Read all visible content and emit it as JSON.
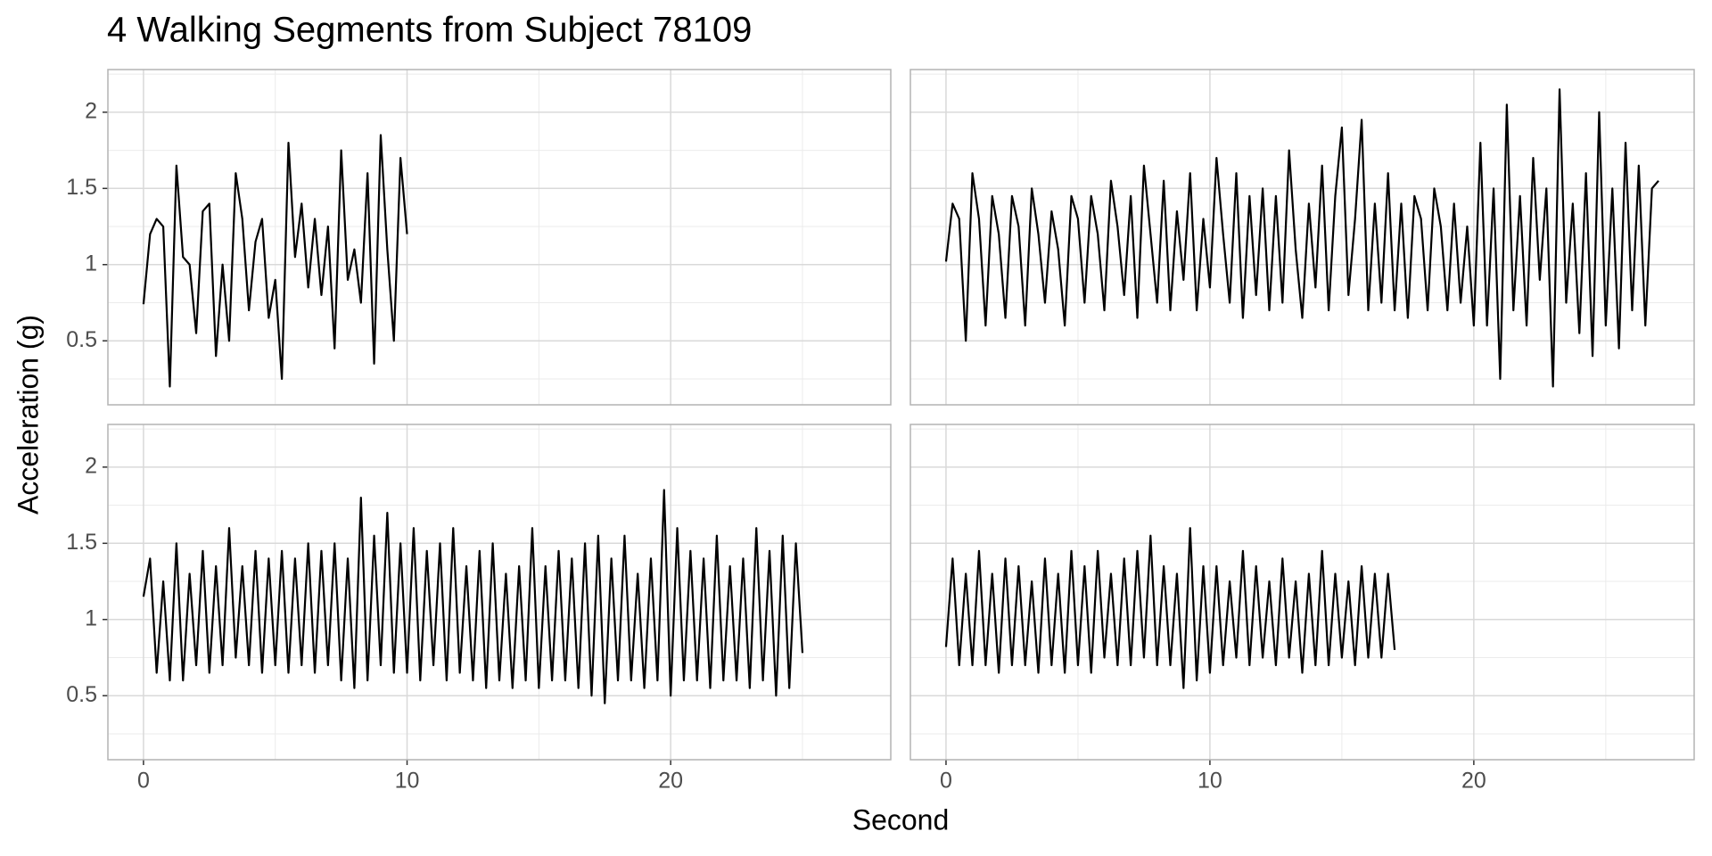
{
  "chart_data": {
    "type": "line",
    "title": "4 Walking Segments from Subject 78109",
    "x_label": "Second",
    "y_label": "Acceleration (g)",
    "xlim": [
      -1.35,
      28.35
    ],
    "ylim": [
      0.08,
      2.28
    ],
    "xticks": [
      0,
      10,
      20
    ],
    "yticks": [
      0.5,
      1.0,
      1.5,
      2.0
    ],
    "x_minor_grid": [
      5,
      15,
      25
    ],
    "y_minor_grid": [
      0.25,
      0.75,
      1.25,
      1.75,
      2.25
    ],
    "grid": true,
    "color": "#000000",
    "panels": [
      {
        "x": [
          0,
          0.25,
          0.5,
          0.75,
          1,
          1.25,
          1.5,
          1.75,
          2,
          2.25,
          2.5,
          2.75,
          3,
          3.25,
          3.5,
          3.75,
          4,
          4.25,
          4.5,
          4.75,
          5,
          5.25,
          5.5,
          5.75,
          6,
          6.25,
          6.5,
          6.75,
          7,
          7.25,
          7.5,
          7.75,
          8,
          8.25,
          8.5,
          8.75,
          9,
          9.25,
          9.5,
          9.75,
          10
        ],
        "values": [
          0.74,
          1.2,
          1.3,
          1.25,
          0.2,
          1.65,
          1.05,
          1.0,
          0.55,
          1.35,
          1.4,
          0.4,
          1.0,
          0.5,
          1.6,
          1.3,
          0.7,
          1.15,
          1.3,
          0.65,
          0.9,
          0.25,
          1.8,
          1.05,
          1.4,
          0.85,
          1.3,
          0.8,
          1.25,
          0.45,
          1.75,
          0.9,
          1.1,
          0.75,
          1.6,
          0.35,
          1.85,
          1.1,
          0.5,
          1.7,
          1.2
        ]
      },
      {
        "x": [
          0,
          0.25,
          0.5,
          0.75,
          1,
          1.25,
          1.5,
          1.75,
          2,
          2.25,
          2.5,
          2.75,
          3,
          3.25,
          3.5,
          3.75,
          4,
          4.25,
          4.5,
          4.75,
          5,
          5.25,
          5.5,
          5.75,
          6,
          6.25,
          6.5,
          6.75,
          7,
          7.25,
          7.5,
          7.75,
          8,
          8.25,
          8.5,
          8.75,
          9,
          9.25,
          9.5,
          9.75,
          10,
          10.25,
          10.5,
          10.75,
          11,
          11.25,
          11.5,
          11.75,
          12,
          12.25,
          12.5,
          12.75,
          13,
          13.25,
          13.5,
          13.75,
          14,
          14.25,
          14.5,
          14.75,
          15,
          15.25,
          15.5,
          15.75,
          16,
          16.25,
          16.5,
          16.75,
          17,
          17.25,
          17.5,
          17.75,
          18,
          18.25,
          18.5,
          18.75,
          19,
          19.25,
          19.5,
          19.75,
          20,
          20.25,
          20.5,
          20.75,
          21,
          21.25,
          21.5,
          21.75,
          22,
          22.25,
          22.5,
          22.75,
          23,
          23.25,
          23.5,
          23.75,
          24,
          24.25,
          24.5,
          24.75,
          25,
          25.25,
          25.5,
          25.75,
          26,
          26.25,
          26.5,
          26.75,
          27
        ],
        "values": [
          1.02,
          1.4,
          1.3,
          0.5,
          1.6,
          1.3,
          0.6,
          1.45,
          1.2,
          0.65,
          1.45,
          1.25,
          0.6,
          1.5,
          1.2,
          0.75,
          1.35,
          1.1,
          0.6,
          1.45,
          1.3,
          0.75,
          1.45,
          1.2,
          0.7,
          1.55,
          1.25,
          0.8,
          1.45,
          0.65,
          1.65,
          1.2,
          0.75,
          1.55,
          0.7,
          1.35,
          0.9,
          1.6,
          0.7,
          1.3,
          0.85,
          1.7,
          1.2,
          0.75,
          1.6,
          0.65,
          1.45,
          0.8,
          1.5,
          0.7,
          1.45,
          0.75,
          1.75,
          1.1,
          0.65,
          1.4,
          0.85,
          1.65,
          0.7,
          1.45,
          1.9,
          0.8,
          1.3,
          1.95,
          0.7,
          1.4,
          0.75,
          1.6,
          0.7,
          1.4,
          0.65,
          1.45,
          1.3,
          0.7,
          1.5,
          1.25,
          0.7,
          1.4,
          0.75,
          1.25,
          0.6,
          1.8,
          0.6,
          1.5,
          0.25,
          2.05,
          0.7,
          1.45,
          0.6,
          1.7,
          0.9,
          1.5,
          0.2,
          2.15,
          0.75,
          1.4,
          0.55,
          1.6,
          0.4,
          2.0,
          0.6,
          1.5,
          0.45,
          1.8,
          0.7,
          1.65,
          0.6,
          1.5,
          1.55
        ]
      },
      {
        "x": [
          0,
          0.25,
          0.5,
          0.75,
          1,
          1.25,
          1.5,
          1.75,
          2,
          2.25,
          2.5,
          2.75,
          3,
          3.25,
          3.5,
          3.75,
          4,
          4.25,
          4.5,
          4.75,
          5,
          5.25,
          5.5,
          5.75,
          6,
          6.25,
          6.5,
          6.75,
          7,
          7.25,
          7.5,
          7.75,
          8,
          8.25,
          8.5,
          8.75,
          9,
          9.25,
          9.5,
          9.75,
          10,
          10.25,
          10.5,
          10.75,
          11,
          11.25,
          11.5,
          11.75,
          12,
          12.25,
          12.5,
          12.75,
          13,
          13.25,
          13.5,
          13.75,
          14,
          14.25,
          14.5,
          14.75,
          15,
          15.25,
          15.5,
          15.75,
          16,
          16.25,
          16.5,
          16.75,
          17,
          17.25,
          17.5,
          17.75,
          18,
          18.25,
          18.5,
          18.75,
          19,
          19.25,
          19.5,
          19.75,
          20,
          20.25,
          20.5,
          20.75,
          21,
          21.25,
          21.5,
          21.75,
          22,
          22.25,
          22.5,
          22.75,
          23,
          23.25,
          23.5,
          23.75,
          24,
          24.25,
          24.5,
          24.75,
          25
        ],
        "values": [
          1.15,
          1.4,
          0.65,
          1.25,
          0.6,
          1.5,
          0.6,
          1.3,
          0.7,
          1.45,
          0.65,
          1.35,
          0.7,
          1.6,
          0.75,
          1.35,
          0.7,
          1.45,
          0.65,
          1.4,
          0.7,
          1.45,
          0.65,
          1.4,
          0.7,
          1.5,
          0.65,
          1.45,
          0.7,
          1.5,
          0.6,
          1.4,
          0.55,
          1.8,
          0.6,
          1.55,
          0.7,
          1.7,
          0.65,
          1.5,
          0.65,
          1.6,
          0.6,
          1.45,
          0.7,
          1.5,
          0.6,
          1.6,
          0.65,
          1.35,
          0.6,
          1.45,
          0.55,
          1.5,
          0.6,
          1.3,
          0.55,
          1.35,
          0.6,
          1.6,
          0.55,
          1.35,
          0.6,
          1.45,
          0.6,
          1.4,
          0.55,
          1.5,
          0.5,
          1.55,
          0.45,
          1.4,
          0.6,
          1.55,
          0.6,
          1.3,
          0.55,
          1.4,
          0.6,
          1.85,
          0.5,
          1.6,
          0.6,
          1.45,
          0.6,
          1.4,
          0.55,
          1.55,
          0.6,
          1.35,
          0.6,
          1.4,
          0.55,
          1.6,
          0.6,
          1.45,
          0.5,
          1.55,
          0.55,
          1.5,
          0.78
        ]
      },
      {
        "x": [
          0,
          0.25,
          0.5,
          0.75,
          1,
          1.25,
          1.5,
          1.75,
          2,
          2.25,
          2.5,
          2.75,
          3,
          3.25,
          3.5,
          3.75,
          4,
          4.25,
          4.5,
          4.75,
          5,
          5.25,
          5.5,
          5.75,
          6,
          6.25,
          6.5,
          6.75,
          7,
          7.25,
          7.5,
          7.75,
          8,
          8.25,
          8.5,
          8.75,
          9,
          9.25,
          9.5,
          9.75,
          10,
          10.25,
          10.5,
          10.75,
          11,
          11.25,
          11.5,
          11.75,
          12,
          12.25,
          12.5,
          12.75,
          13,
          13.25,
          13.5,
          13.75,
          14,
          14.25,
          14.5,
          14.75,
          15,
          15.25,
          15.5,
          15.75,
          16,
          16.25,
          16.5,
          16.75,
          17
        ],
        "values": [
          0.82,
          1.4,
          0.7,
          1.3,
          0.7,
          1.45,
          0.7,
          1.3,
          0.65,
          1.4,
          0.7,
          1.35,
          0.7,
          1.25,
          0.65,
          1.4,
          0.7,
          1.3,
          0.65,
          1.45,
          0.7,
          1.35,
          0.65,
          1.45,
          0.75,
          1.3,
          0.7,
          1.4,
          0.7,
          1.45,
          0.75,
          1.55,
          0.7,
          1.35,
          0.7,
          1.3,
          0.55,
          1.6,
          0.6,
          1.35,
          0.65,
          1.35,
          0.7,
          1.25,
          0.75,
          1.45,
          0.7,
          1.35,
          0.75,
          1.25,
          0.7,
          1.4,
          0.75,
          1.25,
          0.65,
          1.3,
          0.7,
          1.45,
          0.7,
          1.3,
          0.75,
          1.25,
          0.7,
          1.35,
          0.75,
          1.3,
          0.75,
          1.3,
          0.8
        ]
      }
    ]
  }
}
